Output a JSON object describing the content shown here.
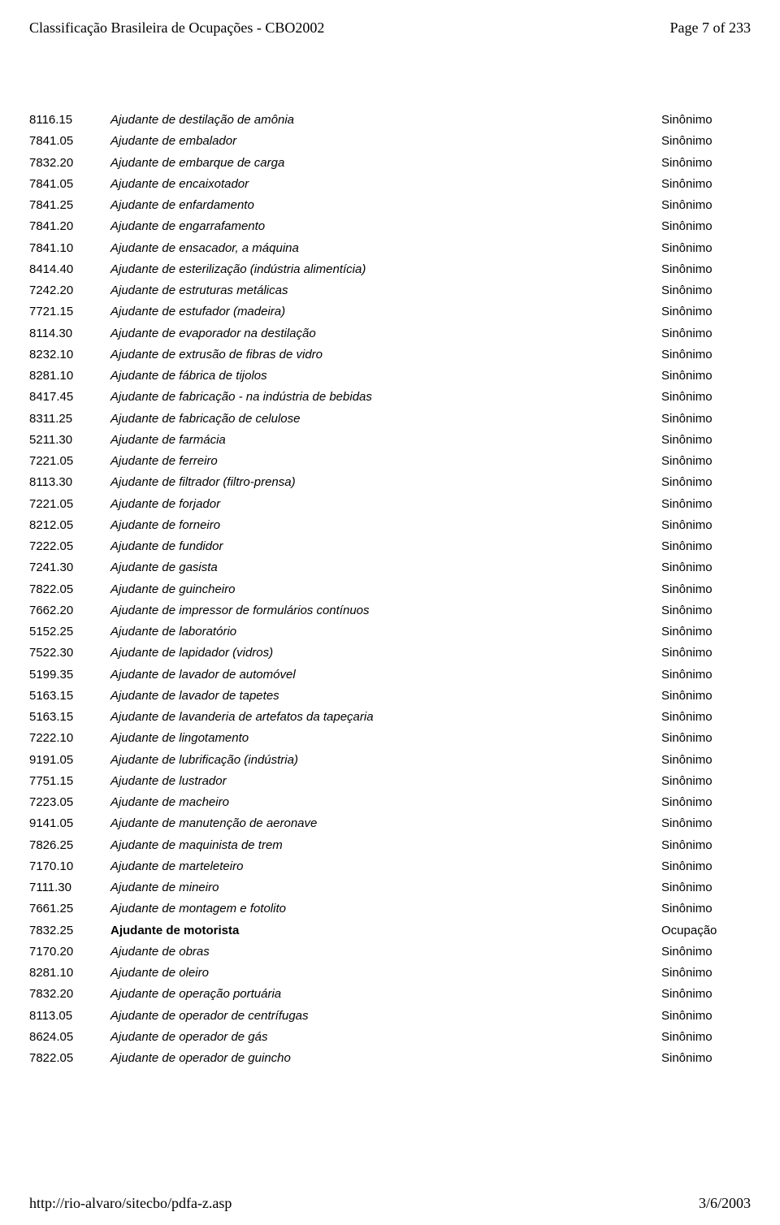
{
  "header": {
    "title": "Classificação Brasileira de Ocupações - CBO2002",
    "pageinfo": "Page 7 of 233"
  },
  "footer": {
    "url": "http://rio-alvaro/sitecbo/pdfa-z.asp",
    "date": "3/6/2003"
  },
  "rows": [
    {
      "code": "8116.15",
      "desc": "Ajudante de destilação de amônia",
      "type": "Sinônimo",
      "bold": false
    },
    {
      "code": "7841.05",
      "desc": "Ajudante de embalador",
      "type": "Sinônimo",
      "bold": false
    },
    {
      "code": "7832.20",
      "desc": "Ajudante de embarque de carga",
      "type": "Sinônimo",
      "bold": false
    },
    {
      "code": "7841.05",
      "desc": "Ajudante de encaixotador",
      "type": "Sinônimo",
      "bold": false
    },
    {
      "code": "7841.25",
      "desc": "Ajudante de enfardamento",
      "type": "Sinônimo",
      "bold": false
    },
    {
      "code": "7841.20",
      "desc": "Ajudante de engarrafamento",
      "type": "Sinônimo",
      "bold": false
    },
    {
      "code": "7841.10",
      "desc": "Ajudante de ensacador, a máquina",
      "type": "Sinônimo",
      "bold": false
    },
    {
      "code": "8414.40",
      "desc": "Ajudante de esterilização (indústria alimentícia)",
      "type": "Sinônimo",
      "bold": false
    },
    {
      "code": "7242.20",
      "desc": "Ajudante de estruturas metálicas",
      "type": "Sinônimo",
      "bold": false
    },
    {
      "code": "7721.15",
      "desc": "Ajudante de estufador (madeira)",
      "type": "Sinônimo",
      "bold": false
    },
    {
      "code": "8114.30",
      "desc": "Ajudante de evaporador na destilação",
      "type": "Sinônimo",
      "bold": false
    },
    {
      "code": "8232.10",
      "desc": "Ajudante de extrusão de fibras de vidro",
      "type": "Sinônimo",
      "bold": false
    },
    {
      "code": "8281.10",
      "desc": "Ajudante de fábrica de tijolos",
      "type": "Sinônimo",
      "bold": false
    },
    {
      "code": "8417.45",
      "desc": "Ajudante de fabricação - na indústria de bebidas",
      "type": "Sinônimo",
      "bold": false
    },
    {
      "code": "8311.25",
      "desc": "Ajudante de fabricação de celulose",
      "type": "Sinônimo",
      "bold": false
    },
    {
      "code": "5211.30",
      "desc": "Ajudante de farmácia",
      "type": "Sinônimo",
      "bold": false
    },
    {
      "code": "7221.05",
      "desc": "Ajudante de ferreiro",
      "type": "Sinônimo",
      "bold": false
    },
    {
      "code": "8113.30",
      "desc": "Ajudante de filtrador (filtro-prensa)",
      "type": "Sinônimo",
      "bold": false
    },
    {
      "code": "7221.05",
      "desc": "Ajudante de forjador",
      "type": "Sinônimo",
      "bold": false
    },
    {
      "code": "8212.05",
      "desc": "Ajudante de forneiro",
      "type": "Sinônimo",
      "bold": false
    },
    {
      "code": "7222.05",
      "desc": "Ajudante de fundidor",
      "type": "Sinônimo",
      "bold": false
    },
    {
      "code": "7241.30",
      "desc": "Ajudante de gasista",
      "type": "Sinônimo",
      "bold": false
    },
    {
      "code": "7822.05",
      "desc": "Ajudante de guincheiro",
      "type": "Sinônimo",
      "bold": false
    },
    {
      "code": "7662.20",
      "desc": "Ajudante de impressor de formulários contínuos",
      "type": "Sinônimo",
      "bold": false
    },
    {
      "code": "5152.25",
      "desc": "Ajudante de laboratório",
      "type": "Sinônimo",
      "bold": false
    },
    {
      "code": "7522.30",
      "desc": "Ajudante de lapidador (vidros)",
      "type": "Sinônimo",
      "bold": false
    },
    {
      "code": "5199.35",
      "desc": "Ajudante de lavador de automóvel",
      "type": "Sinônimo",
      "bold": false
    },
    {
      "code": "5163.15",
      "desc": "Ajudante de lavador de tapetes",
      "type": "Sinônimo",
      "bold": false
    },
    {
      "code": "5163.15",
      "desc": "Ajudante de lavanderia de artefatos da tapeçaria",
      "type": "Sinônimo",
      "bold": false
    },
    {
      "code": "7222.10",
      "desc": "Ajudante de lingotamento",
      "type": "Sinônimo",
      "bold": false
    },
    {
      "code": "9191.05",
      "desc": "Ajudante de lubrificação (indústria)",
      "type": "Sinônimo",
      "bold": false
    },
    {
      "code": "7751.15",
      "desc": "Ajudante de lustrador",
      "type": "Sinônimo",
      "bold": false
    },
    {
      "code": "7223.05",
      "desc": "Ajudante de macheiro",
      "type": "Sinônimo",
      "bold": false
    },
    {
      "code": "9141.05",
      "desc": "Ajudante de manutenção de aeronave",
      "type": "Sinônimo",
      "bold": false
    },
    {
      "code": "7826.25",
      "desc": "Ajudante de maquinista de trem",
      "type": "Sinônimo",
      "bold": false
    },
    {
      "code": "7170.10",
      "desc": "Ajudante de marteleteiro",
      "type": "Sinônimo",
      "bold": false
    },
    {
      "code": "7111.30",
      "desc": "Ajudante de mineiro",
      "type": "Sinônimo",
      "bold": false
    },
    {
      "code": "7661.25",
      "desc": "Ajudante de montagem e fotolito",
      "type": "Sinônimo",
      "bold": false
    },
    {
      "code": "7832.25",
      "desc": "Ajudante de motorista",
      "type": "Ocupação",
      "bold": true
    },
    {
      "code": "7170.20",
      "desc": "Ajudante de obras",
      "type": "Sinônimo",
      "bold": false
    },
    {
      "code": "8281.10",
      "desc": "Ajudante de oleiro",
      "type": "Sinônimo",
      "bold": false
    },
    {
      "code": "7832.20",
      "desc": "Ajudante de operação portuária",
      "type": "Sinônimo",
      "bold": false
    },
    {
      "code": "8113.05",
      "desc": "Ajudante de operador de centrífugas",
      "type": "Sinônimo",
      "bold": false
    },
    {
      "code": "8624.05",
      "desc": "Ajudante de operador de gás",
      "type": "Sinônimo",
      "bold": false
    },
    {
      "code": "7822.05",
      "desc": "Ajudante de operador de guincho",
      "type": "Sinônimo",
      "bold": false
    }
  ]
}
